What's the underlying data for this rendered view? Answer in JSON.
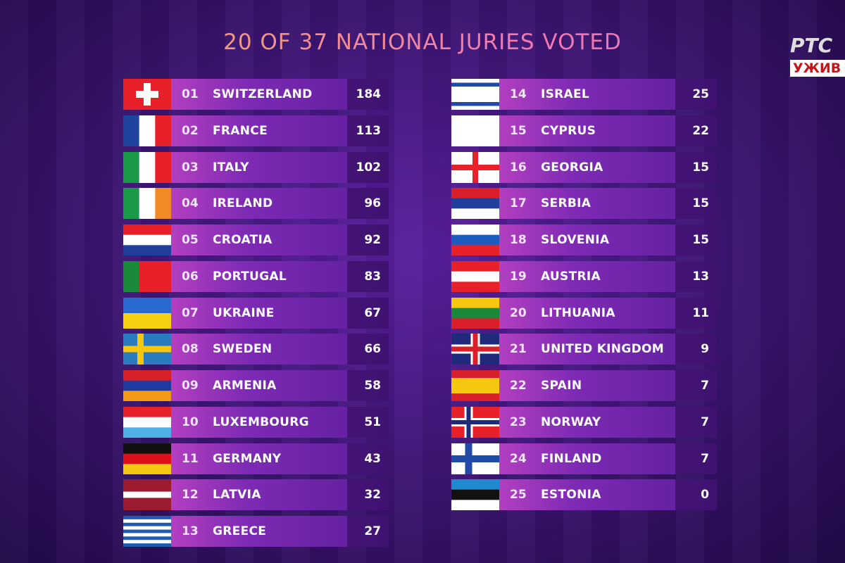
{
  "header": {
    "title": "20 OF 37 NATIONAL JURIES VOTED",
    "channel_logo": "РТС",
    "live_badge": "УЖИВ"
  },
  "standings": [
    {
      "rank": "01",
      "country": "SWITZERLAND",
      "points": 184
    },
    {
      "rank": "02",
      "country": "FRANCE",
      "points": 113
    },
    {
      "rank": "03",
      "country": "ITALY",
      "points": 102
    },
    {
      "rank": "04",
      "country": "IRELAND",
      "points": 96
    },
    {
      "rank": "05",
      "country": "CROATIA",
      "points": 92
    },
    {
      "rank": "06",
      "country": "PORTUGAL",
      "points": 83
    },
    {
      "rank": "07",
      "country": "UKRAINE",
      "points": 67
    },
    {
      "rank": "08",
      "country": "SWEDEN",
      "points": 66
    },
    {
      "rank": "09",
      "country": "ARMENIA",
      "points": 58
    },
    {
      "rank": "10",
      "country": "LUXEMBOURG",
      "points": 51
    },
    {
      "rank": "11",
      "country": "GERMANY",
      "points": 43
    },
    {
      "rank": "12",
      "country": "LATVIA",
      "points": 32
    },
    {
      "rank": "13",
      "country": "GREECE",
      "points": 27
    },
    {
      "rank": "14",
      "country": "ISRAEL",
      "points": 25
    },
    {
      "rank": "15",
      "country": "CYPRUS",
      "points": 22
    },
    {
      "rank": "16",
      "country": "GEORGIA",
      "points": 15
    },
    {
      "rank": "17",
      "country": "SERBIA",
      "points": 15
    },
    {
      "rank": "18",
      "country": "SLOVENIA",
      "points": 15
    },
    {
      "rank": "19",
      "country": "AUSTRIA",
      "points": 13
    },
    {
      "rank": "20",
      "country": "LITHUANIA",
      "points": 11
    },
    {
      "rank": "21",
      "country": "UNITED KINGDOM",
      "points": 9
    },
    {
      "rank": "22",
      "country": "SPAIN",
      "points": 7
    },
    {
      "rank": "23",
      "country": "NORWAY",
      "points": 7
    },
    {
      "rank": "24",
      "country": "FINLAND",
      "points": 7
    },
    {
      "rank": "25",
      "country": "ESTONIA",
      "points": 0
    }
  ]
}
